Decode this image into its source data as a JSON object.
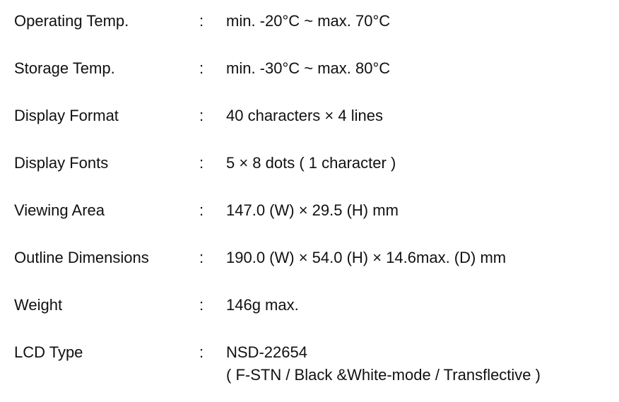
{
  "specs": [
    {
      "label": "Operating Temp.",
      "colon": ":",
      "value": [
        "min. -20°C ~ max. 70°C"
      ]
    },
    {
      "label": "Storage Temp.",
      "colon": ":",
      "value": [
        "min. -30°C ~ max. 80°C"
      ]
    },
    {
      "label": "Display Format",
      "colon": ":",
      "value": [
        "40 characters × 4 lines"
      ]
    },
    {
      "label": "Display Fonts",
      "colon": ":",
      "value": [
        "5 × 8 dots ( 1 character )"
      ]
    },
    {
      "label": "Viewing Area",
      "colon": ":",
      "value": [
        "147.0 (W) × 29.5 (H) mm"
      ]
    },
    {
      "label": "Outline Dimensions",
      "colon": ":",
      "value": [
        "190.0 (W) × 54.0 (H) × 14.6max. (D) mm"
      ]
    },
    {
      "label": "Weight",
      "colon": ":",
      "value": [
        "146g max."
      ]
    },
    {
      "label": "LCD Type",
      "colon": ":",
      "value": [
        "NSD-22654",
        "( F-STN / Black &White-mode / Transflective )"
      ]
    }
  ]
}
